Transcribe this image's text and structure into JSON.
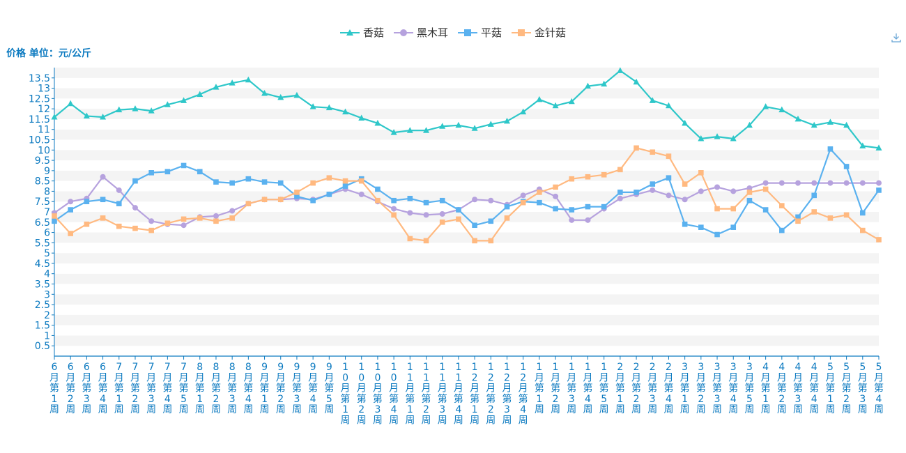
{
  "chart_data": {
    "type": "line",
    "ylabel": "价格 单位：元/公斤",
    "ylim": [
      0,
      14
    ],
    "y_ticks": [
      0.5,
      1,
      1.5,
      2,
      2.5,
      3,
      3.5,
      4,
      4.5,
      5,
      5.5,
      6,
      6.5,
      7,
      7.5,
      8,
      8.5,
      9,
      9.5,
      10,
      10.5,
      11,
      11.5,
      12,
      12.5,
      13,
      13.5
    ],
    "categories": [
      "6月第1周",
      "6月第2周",
      "6月第3周",
      "6月第4周",
      "7月第1周",
      "7月第2周",
      "7月第3周",
      "7月第4周",
      "7月第5周",
      "8月第1周",
      "8月第2周",
      "8月第3周",
      "8月第4周",
      "9月第1周",
      "9月第2周",
      "9月第3周",
      "9月第4周",
      "9月第5周",
      "10月第1周",
      "10月第2周",
      "10月第3周",
      "10月第4周",
      "11月第1周",
      "11月第2周",
      "11月第3周",
      "11月第4周",
      "12月第1周",
      "12月第2周",
      "12月第3周",
      "12月第4周",
      "1月第1周",
      "1月第2周",
      "1月第3周",
      "1月第4周",
      "1月第5周",
      "2月第1周",
      "2月第2周",
      "2月第3周",
      "2月第4周",
      "3月第1周",
      "3月第2周",
      "3月第3周",
      "3月第4周",
      "3月第5周",
      "4月第1周",
      "4月第2周",
      "4月第3周",
      "4月第4周",
      "5月第1周",
      "5月第2周",
      "5月第3周",
      "5月第4周"
    ],
    "series": [
      {
        "name": "香菇",
        "color": "#2ec7c9",
        "marker": "triangle",
        "values": [
          11.6,
          12.25,
          11.65,
          11.6,
          11.95,
          12.0,
          11.9,
          12.2,
          12.4,
          12.7,
          13.05,
          13.25,
          13.4,
          12.75,
          12.55,
          12.65,
          12.1,
          12.05,
          11.85,
          11.55,
          11.3,
          10.85,
          10.95,
          10.95,
          11.15,
          11.2,
          11.05,
          11.25,
          11.4,
          11.85,
          12.45,
          12.15,
          12.35,
          13.1,
          13.2,
          13.85,
          13.3,
          12.4,
          12.15,
          11.3,
          10.55,
          10.65,
          10.55,
          11.2,
          12.1,
          11.95,
          11.5,
          11.2,
          11.35,
          11.2,
          10.2,
          10.1
        ]
      },
      {
        "name": "黑木耳",
        "color": "#b6a2de",
        "marker": "circle",
        "values": [
          6.95,
          7.5,
          7.65,
          8.7,
          8.05,
          7.2,
          6.55,
          6.4,
          6.35,
          6.75,
          6.8,
          7.05,
          7.4,
          7.6,
          7.6,
          7.65,
          7.6,
          7.85,
          8.1,
          7.85,
          7.5,
          7.15,
          6.95,
          6.85,
          6.9,
          7.1,
          7.6,
          7.55,
          7.35,
          7.8,
          8.1,
          7.75,
          6.6,
          6.6,
          7.15,
          7.65,
          7.85,
          8.05,
          7.8,
          7.6,
          8.0,
          8.2,
          8.0,
          8.15,
          8.4,
          8.4,
          8.4,
          8.4,
          8.4,
          8.4,
          8.4,
          8.4
        ]
      },
      {
        "name": "平菇",
        "color": "#5ab1ef",
        "marker": "square",
        "values": [
          6.55,
          7.1,
          7.5,
          7.6,
          7.4,
          8.5,
          8.9,
          8.95,
          9.25,
          8.95,
          8.45,
          8.4,
          8.6,
          8.45,
          8.4,
          7.75,
          7.55,
          7.85,
          8.25,
          8.6,
          8.1,
          7.55,
          7.65,
          7.45,
          7.55,
          7.1,
          6.35,
          6.55,
          7.25,
          7.5,
          7.45,
          7.15,
          7.1,
          7.25,
          7.25,
          7.95,
          7.95,
          8.35,
          8.65,
          6.4,
          6.25,
          5.9,
          6.25,
          7.55,
          7.1,
          6.1,
          6.75,
          7.8,
          10.05,
          9.2,
          6.95,
          8.05
        ]
      },
      {
        "name": "金针菇",
        "color": "#ffb980",
        "marker": "square",
        "values": [
          6.8,
          5.95,
          6.4,
          6.7,
          6.3,
          6.2,
          6.1,
          6.45,
          6.65,
          6.7,
          6.55,
          6.7,
          7.4,
          7.6,
          7.6,
          7.95,
          8.4,
          8.65,
          8.5,
          8.5,
          7.55,
          6.85,
          5.7,
          5.6,
          6.5,
          6.65,
          5.6,
          5.6,
          6.7,
          7.45,
          7.95,
          8.2,
          8.6,
          8.7,
          8.8,
          9.05,
          10.1,
          9.9,
          9.7,
          8.35,
          8.9,
          7.15,
          7.15,
          7.95,
          8.1,
          7.3,
          6.55,
          7.0,
          6.7,
          6.85,
          6.1,
          5.65
        ]
      }
    ],
    "legend_position": "top-center",
    "grid": true
  },
  "toolbar": {
    "download_icon": "download-icon"
  }
}
